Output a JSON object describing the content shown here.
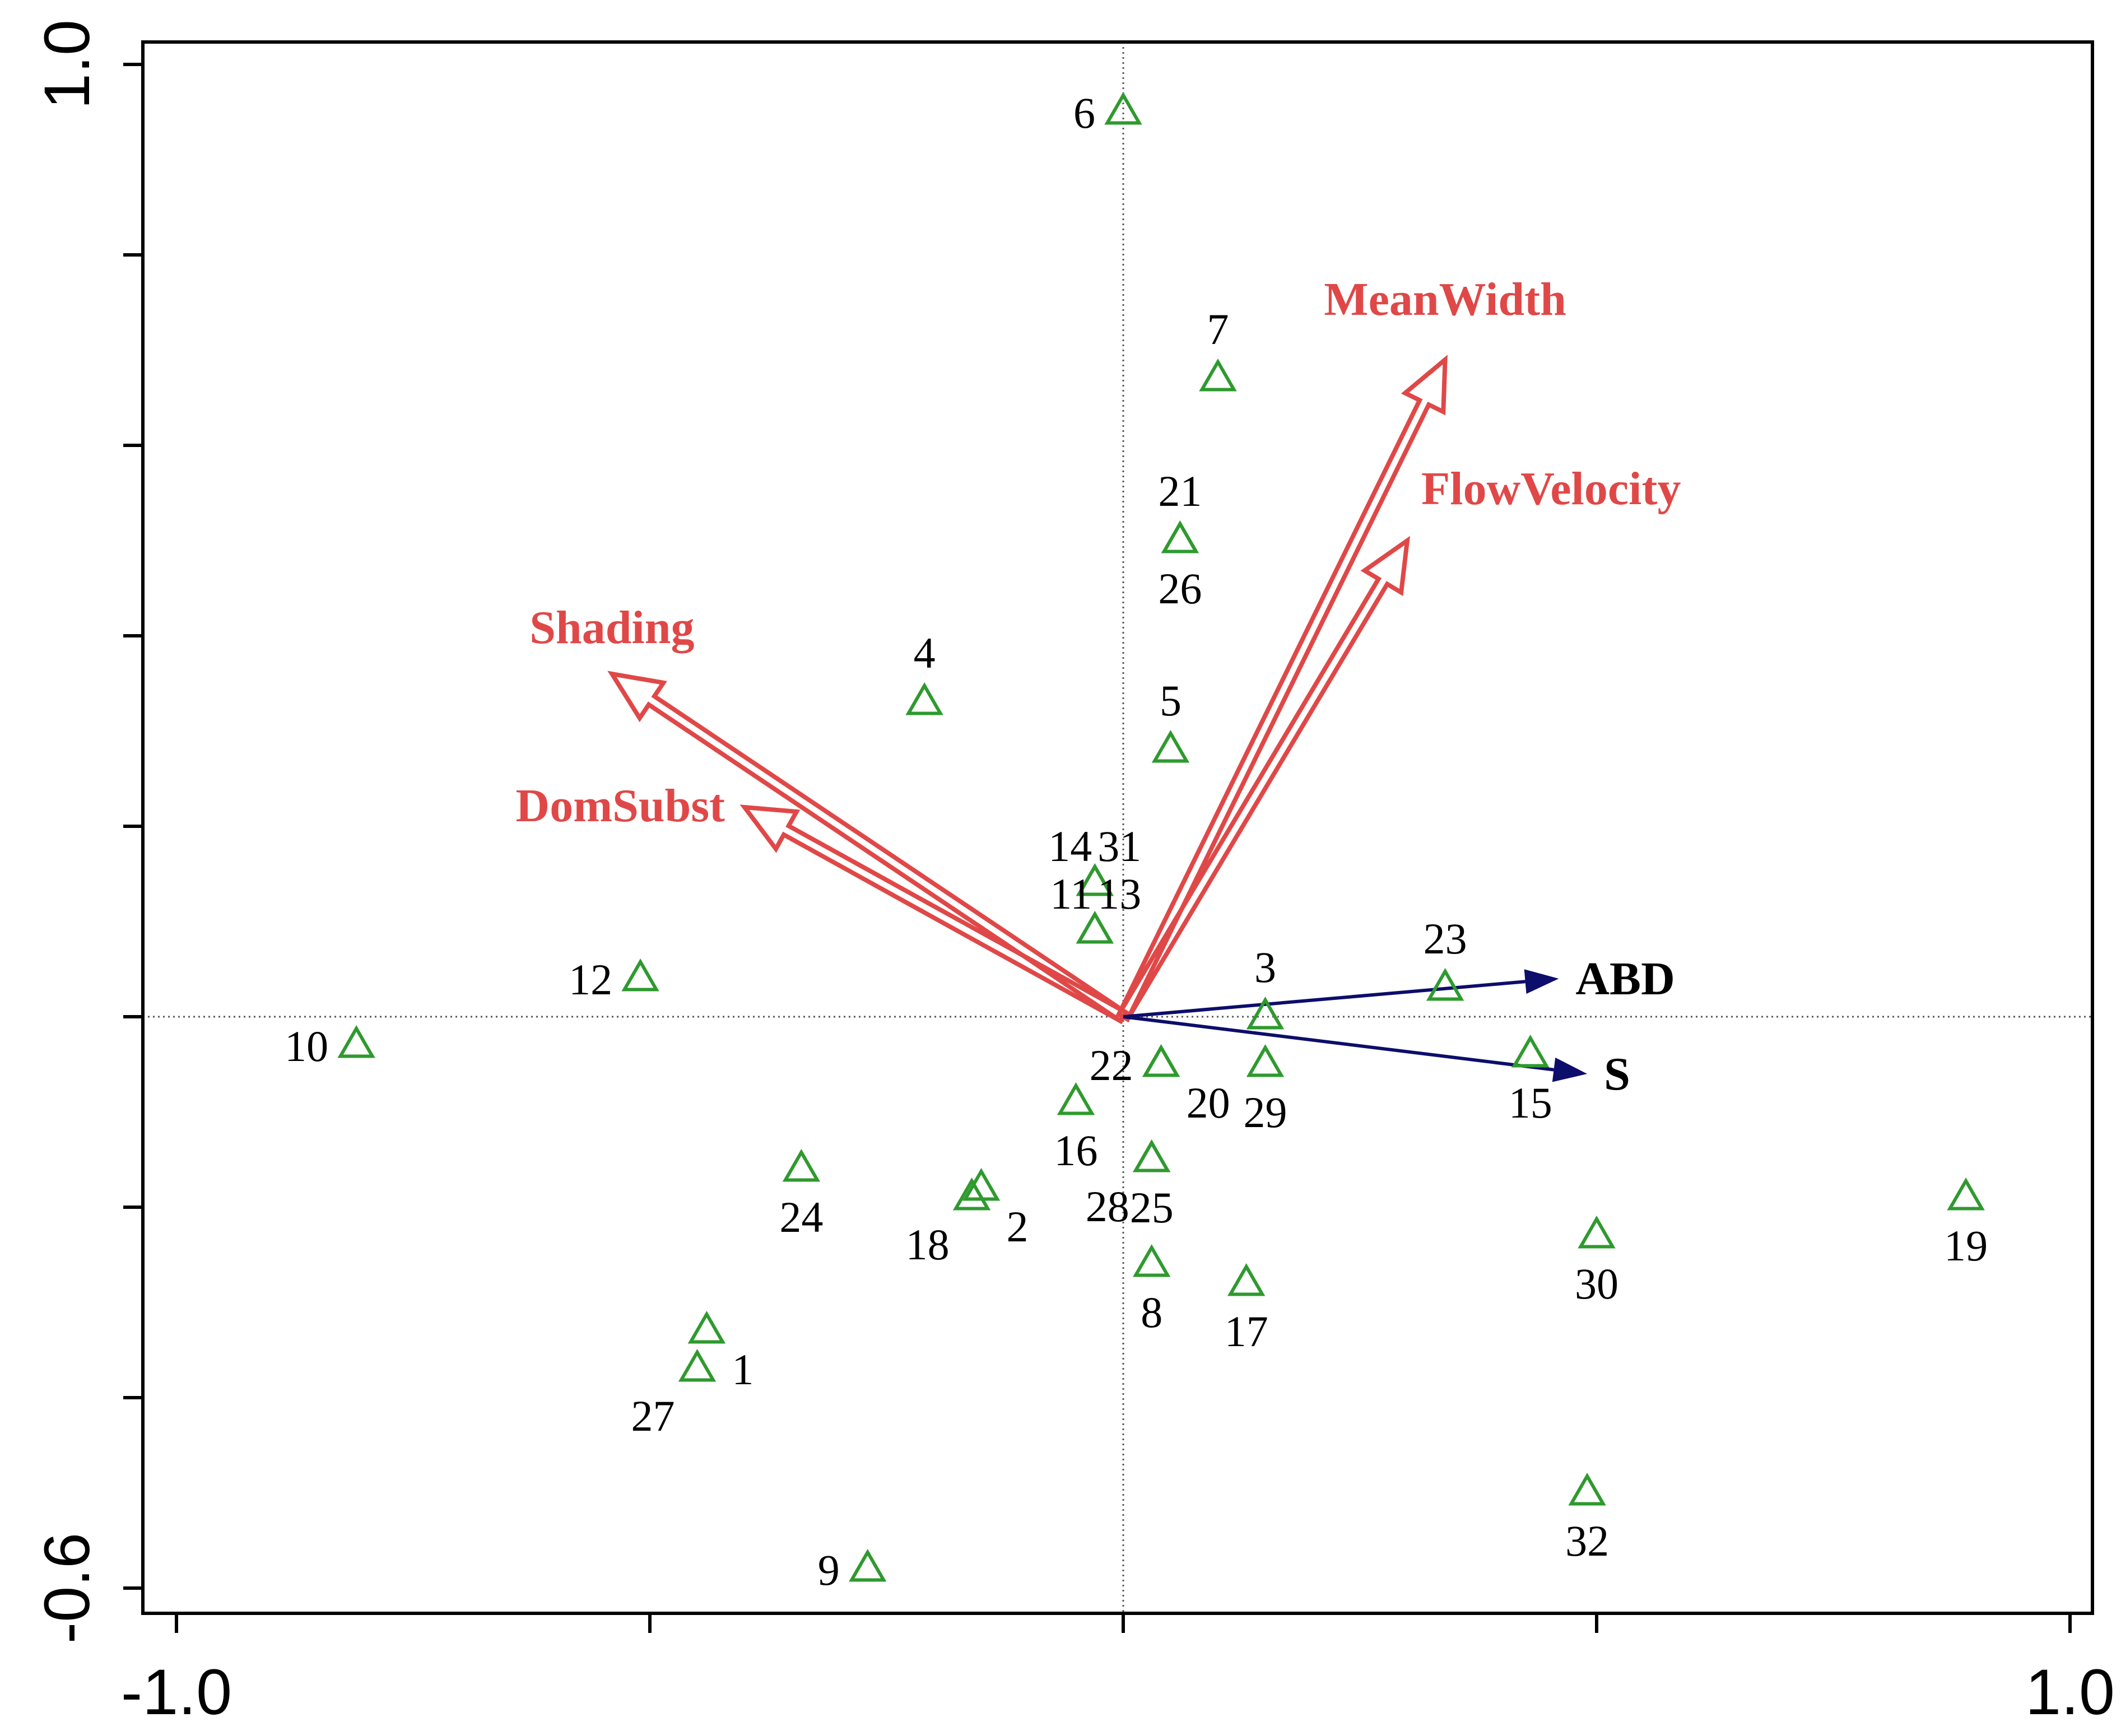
{
  "chart_data": {
    "type": "scatter",
    "title": "",
    "xlabel": "",
    "ylabel": "",
    "xlim": [
      -1.0,
      1.0
    ],
    "ylim": [
      -0.6,
      1.0
    ],
    "x_tick_labels": [
      {
        "value": -1.0,
        "label": "-1.0"
      },
      {
        "value": 1.0,
        "label": "1.0"
      }
    ],
    "y_tick_labels": [
      {
        "value": 1.0,
        "label": "1.0"
      },
      {
        "value": -0.6,
        "label": "-0.6"
      }
    ],
    "x_ticks": [
      -1.0,
      -0.5,
      0.0,
      0.5,
      1.0
    ],
    "y_ticks": [
      -0.6,
      -0.4,
      -0.2,
      0.0,
      0.2,
      0.4,
      0.6,
      0.8,
      1.0
    ],
    "colors": {
      "site": "#2e9a2e",
      "environment": "#e04848",
      "response": "#0d0d6b",
      "axis": "#000000"
    },
    "sites": [
      {
        "label": "1",
        "x": -0.44,
        "y": -0.33,
        "label_pos": "right-below"
      },
      {
        "label": "2",
        "x": -0.15,
        "y": -0.18,
        "label_pos": "right-below"
      },
      {
        "label": "3",
        "x": 0.15,
        "y": 0.0,
        "label_pos": "above"
      },
      {
        "label": "4",
        "x": -0.21,
        "y": 0.33,
        "label_pos": "above"
      },
      {
        "label": "5",
        "x": 0.05,
        "y": 0.28,
        "label_pos": "above"
      },
      {
        "label": "6",
        "x": 0.0,
        "y": 0.95,
        "label_pos": "left"
      },
      {
        "label": "7",
        "x": 0.1,
        "y": 0.67,
        "label_pos": "above"
      },
      {
        "label": "8",
        "x": 0.03,
        "y": -0.26,
        "label_pos": "below"
      },
      {
        "label": "9",
        "x": -0.27,
        "y": -0.58,
        "label_pos": "left"
      },
      {
        "label": "10",
        "x": -0.81,
        "y": -0.03,
        "label_pos": "left"
      },
      {
        "label": "11",
        "x": -0.03,
        "y": 0.09,
        "label_pos": "left-above"
      },
      {
        "label": "12",
        "x": -0.51,
        "y": 0.04,
        "label_pos": "left"
      },
      {
        "label": "13",
        "x": -0.03,
        "y": 0.09,
        "label_pos": "right-above"
      },
      {
        "label": "14",
        "x": -0.03,
        "y": 0.14,
        "label_pos": "left-above"
      },
      {
        "label": "15",
        "x": 0.43,
        "y": -0.04,
        "label_pos": "below"
      },
      {
        "label": "16",
        "x": -0.05,
        "y": -0.09,
        "label_pos": "below"
      },
      {
        "label": "17",
        "x": 0.13,
        "y": -0.28,
        "label_pos": "below"
      },
      {
        "label": "18",
        "x": -0.16,
        "y": -0.19,
        "label_pos": "left-below"
      },
      {
        "label": "19",
        "x": 0.89,
        "y": -0.19,
        "label_pos": "below"
      },
      {
        "label": "20",
        "x": 0.04,
        "y": -0.05,
        "label_pos": "right-below"
      },
      {
        "label": "21",
        "x": 0.06,
        "y": 0.5,
        "label_pos": "above"
      },
      {
        "label": "22",
        "x": 0.04,
        "y": -0.05,
        "label_pos": "left"
      },
      {
        "label": "23",
        "x": 0.34,
        "y": 0.03,
        "label_pos": "above"
      },
      {
        "label": "24",
        "x": -0.34,
        "y": -0.16,
        "label_pos": "below"
      },
      {
        "label": "25",
        "x": 0.03,
        "y": -0.15,
        "label_pos": "below"
      },
      {
        "label": "26",
        "x": 0.06,
        "y": 0.5,
        "label_pos": "below"
      },
      {
        "label": "27",
        "x": -0.45,
        "y": -0.37,
        "label_pos": "left-below"
      },
      {
        "label": "28",
        "x": 0.03,
        "y": -0.15,
        "label_pos": "left-below"
      },
      {
        "label": "29",
        "x": 0.15,
        "y": -0.05,
        "label_pos": "below"
      },
      {
        "label": "30",
        "x": 0.5,
        "y": -0.23,
        "label_pos": "below"
      },
      {
        "label": "31",
        "x": -0.03,
        "y": 0.14,
        "label_pos": "right-above"
      },
      {
        "label": "32",
        "x": 0.49,
        "y": -0.5,
        "label_pos": "below"
      }
    ],
    "environment_vectors": [
      {
        "name": "MeanWidth",
        "x": 0.34,
        "y": 0.69
      },
      {
        "name": "FlowVelocity",
        "x": 0.3,
        "y": 0.5
      },
      {
        "name": "Shading",
        "x": -0.54,
        "y": 0.36
      },
      {
        "name": "DomSubst",
        "x": -0.4,
        "y": 0.22
      }
    ],
    "response_vectors": [
      {
        "name": "ABD",
        "x": 0.46,
        "y": 0.04
      },
      {
        "name": "S",
        "x": 0.49,
        "y": -0.06
      }
    ]
  }
}
